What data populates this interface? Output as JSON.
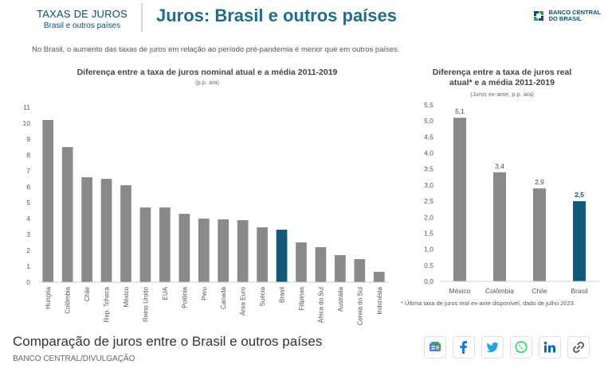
{
  "header": {
    "kicker": "TAXAS DE JUROS",
    "kicker_sub": "Brasil e outros países",
    "title": "Juros: Brasil e outros países",
    "logo_line1": "BANCO CENTRAL",
    "logo_line2": "DO BRASIL"
  },
  "note": "No Brasil, o aumento das taxas de juros em relação ao período pré-pandemia é menor que em outros países.",
  "caption": "Comparação de juros entre o Brasil e outros países",
  "credit": "BANCO CENTRAL/DIVULGAÇÃO",
  "share_icons": [
    "google-news-icon",
    "facebook-icon",
    "twitter-icon",
    "whatsapp-icon",
    "linkedin-icon",
    "link-icon"
  ],
  "colors": {
    "bar": "#8a8a8a",
    "highlight": "#0e5a78",
    "accent": "#1c6e8c"
  },
  "chart_data": [
    {
      "type": "bar",
      "title": "Diferença entre a taxa de juros nominal atual e a média 2011-2019",
      "subtitle": "(p.p. a/a)",
      "categories": [
        "Hungria",
        "Colômbia",
        "Chile",
        "Rep. Tcheca",
        "México",
        "Reino Unido",
        "EUA",
        "Polônia",
        "Peru",
        "Canadá",
        "Área Euro",
        "Suécia",
        "Brasil",
        "Filipinas",
        "África do Sul",
        "Austrália",
        "Coreia do Sul",
        "Indonésia"
      ],
      "values": [
        10.2,
        8.5,
        6.6,
        6.5,
        6.1,
        4.7,
        4.7,
        4.3,
        4.0,
        3.95,
        3.9,
        3.45,
        3.3,
        2.5,
        2.2,
        1.7,
        1.45,
        0.65
      ],
      "highlight": "Brasil",
      "ylim": [
        0,
        11
      ],
      "yticks": [
        "0",
        "1",
        "2",
        "3",
        "4",
        "5",
        "6",
        "7",
        "8",
        "9",
        "10",
        "11"
      ]
    },
    {
      "type": "bar",
      "title_line1": "Diferença entre a taxa de juros real",
      "title_line2": "atual* e a média 2011-2019",
      "subtitle": "(Juros ex-ante, p.p. a/a)",
      "categories": [
        "México",
        "Colômbia",
        "Chile",
        "Brasil"
      ],
      "values": [
        5.1,
        3.4,
        2.9,
        2.5
      ],
      "value_labels": [
        "5,1",
        "3,4",
        "2,9",
        "2,5"
      ],
      "highlight": "Brasil",
      "ylim": [
        0,
        5.5
      ],
      "yticks": [
        "0,0",
        "0,5",
        "1,0",
        "1,5",
        "2,0",
        "2,5",
        "3,0",
        "3,5",
        "4,0",
        "4,5",
        "5,0",
        "5,5"
      ],
      "footnote": "* Última taxa de juros real ex-ante disponível, dado de julho 2023."
    }
  ]
}
